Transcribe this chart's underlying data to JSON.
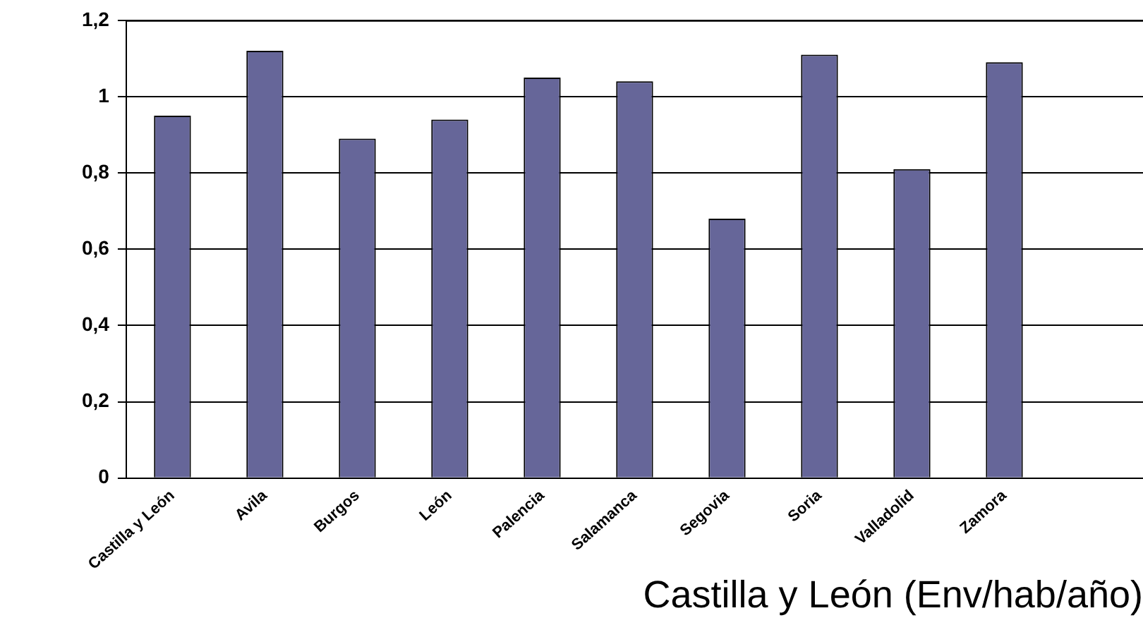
{
  "chart_data": {
    "type": "bar",
    "title": "Castilla y León (Env/hab/año)",
    "categories": [
      "Castilla y León",
      "Avila",
      "Burgos",
      "León",
      "Palencia",
      "Salamanca",
      "Segovia",
      "Soria",
      "Valladolid",
      "Zamora",
      null
    ],
    "values": [
      0.95,
      1.12,
      0.89,
      0.94,
      1.05,
      1.04,
      0.68,
      1.11,
      0.81,
      1.09,
      null
    ],
    "color": "#666699",
    "ylim": [
      0,
      1.2
    ],
    "yticks": [
      {
        "value": 0,
        "label": "0"
      },
      {
        "value": 0.2,
        "label": "0,2"
      },
      {
        "value": 0.4,
        "label": "0,4"
      },
      {
        "value": 0.6,
        "label": "0,6"
      },
      {
        "value": 0.8,
        "label": "0,8"
      },
      {
        "value": 1,
        "label": "1"
      },
      {
        "value": 1.2,
        "label": "1,2"
      }
    ],
    "grid": "y",
    "legend": false
  }
}
